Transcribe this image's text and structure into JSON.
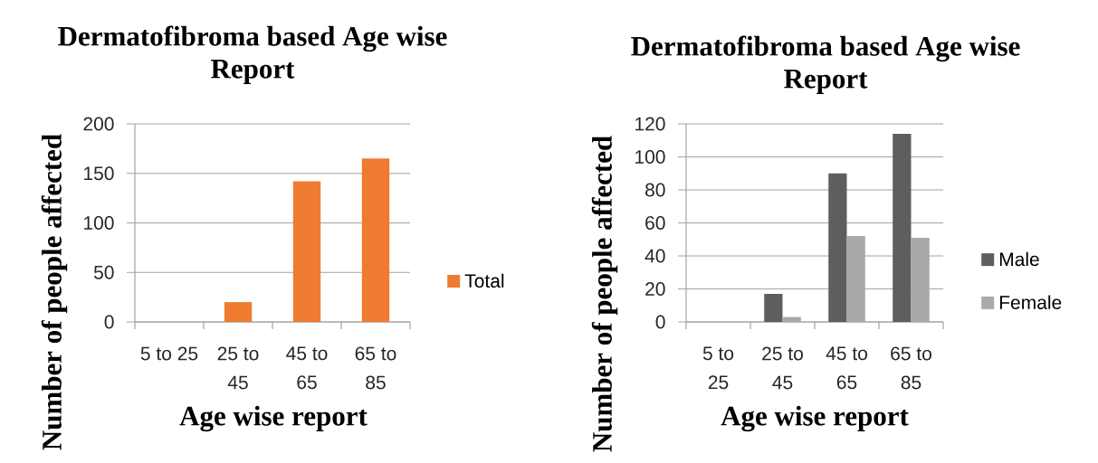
{
  "chart_data": [
    {
      "type": "bar",
      "title": "Dermatofibroma based Age wise Report",
      "xlabel": "Age wise report",
      "ylabel": "Number of people affected",
      "categories": [
        "5 to 25",
        "25 to 45",
        "45 to 65",
        "65 to 85"
      ],
      "series": [
        {
          "name": "Total",
          "color": "#ee7b30",
          "values": [
            0,
            20,
            142,
            165
          ]
        }
      ],
      "ylim": [
        0,
        200
      ],
      "yticks": [
        0,
        50,
        100,
        150,
        200
      ],
      "grid": "y",
      "legend": "right"
    },
    {
      "type": "bar",
      "title": "Dermatofibroma based Age wise Report",
      "xlabel": "Age wise report",
      "ylabel": "Number of people affected",
      "categories": [
        "5 to 25",
        "25 to 45",
        "45 to 65",
        "65 to 85"
      ],
      "series": [
        {
          "name": "Male",
          "color": "#5e5e5e",
          "values": [
            0,
            17,
            90,
            114
          ]
        },
        {
          "name": "Female",
          "color": "#aba8a8",
          "values": [
            0,
            3,
            52,
            51
          ]
        }
      ],
      "ylim": [
        0,
        120
      ],
      "yticks": [
        0,
        20,
        40,
        60,
        80,
        100,
        120
      ],
      "grid": "y",
      "legend": "right"
    }
  ]
}
